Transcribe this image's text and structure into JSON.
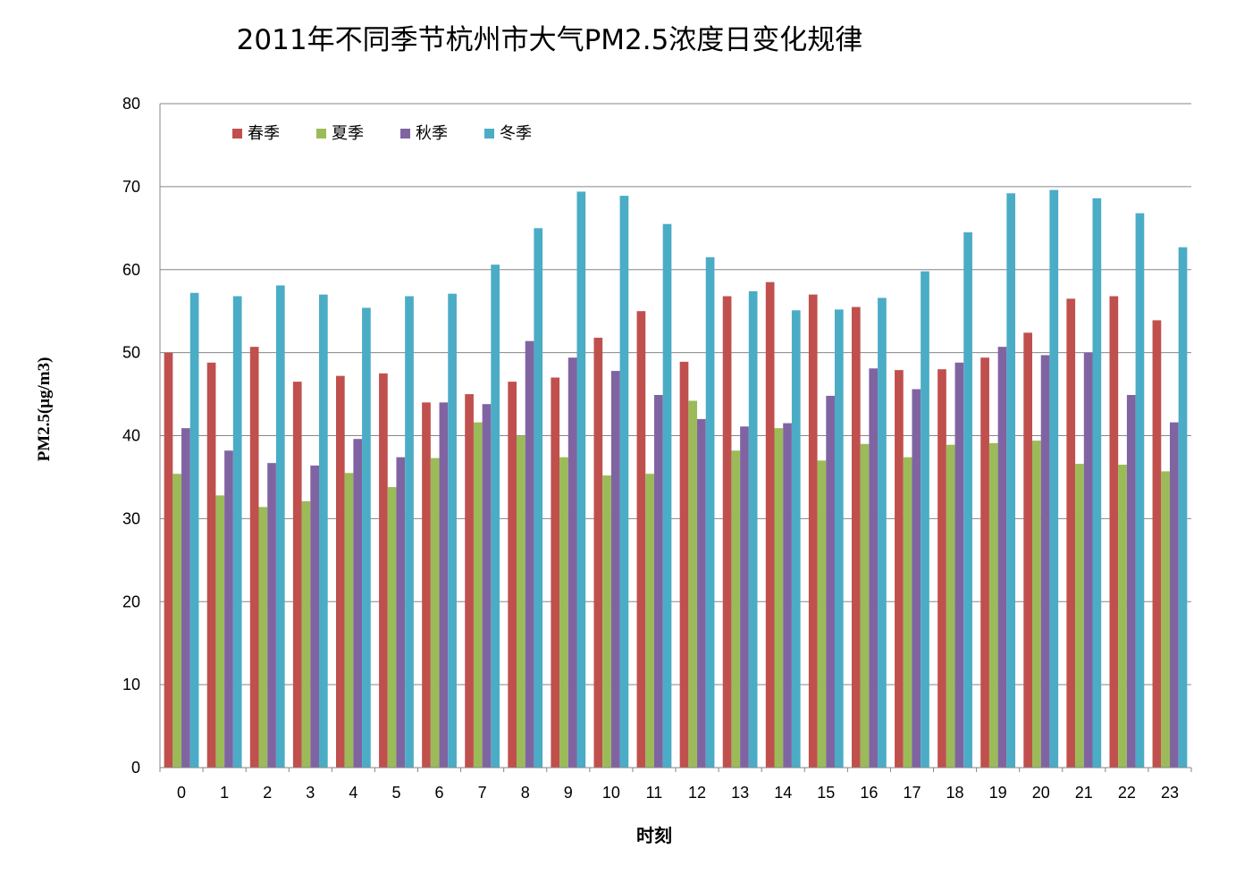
{
  "chart_data": {
    "type": "bar",
    "title": "2011年不同季节杭州市大气PM2.5浓度日变化规律",
    "xlabel": "时刻",
    "ylabel": "PM2.5(μg/m3)",
    "ylim": [
      0,
      80
    ],
    "yticks": [
      0,
      10,
      20,
      30,
      40,
      50,
      60,
      70,
      80
    ],
    "grid": true,
    "legend_position": "top-left inside plot",
    "categories": [
      "0",
      "1",
      "2",
      "3",
      "4",
      "5",
      "6",
      "7",
      "8",
      "9",
      "10",
      "11",
      "12",
      "13",
      "14",
      "15",
      "16",
      "17",
      "18",
      "19",
      "20",
      "21",
      "22",
      "23"
    ],
    "series": [
      {
        "name": "春季",
        "color": "#c0504d",
        "values": [
          50.0,
          48.8,
          50.7,
          46.5,
          47.2,
          47.5,
          44.0,
          45.0,
          46.5,
          47.0,
          51.8,
          55.0,
          48.9,
          56.8,
          58.5,
          57.0,
          55.5,
          47.9,
          48.0,
          49.4,
          52.4,
          56.5,
          56.8,
          53.9
        ]
      },
      {
        "name": "夏季",
        "color": "#9bbb59",
        "values": [
          35.4,
          32.8,
          31.4,
          32.1,
          35.5,
          33.8,
          37.3,
          41.6,
          40.0,
          37.4,
          35.2,
          35.4,
          44.2,
          38.2,
          40.9,
          37.0,
          39.0,
          37.4,
          38.9,
          39.1,
          39.4,
          36.6,
          36.5,
          35.7
        ]
      },
      {
        "name": "秋季",
        "color": "#8064a2",
        "values": [
          40.9,
          38.2,
          36.7,
          36.4,
          39.6,
          37.4,
          44.0,
          43.8,
          51.4,
          49.4,
          47.8,
          44.9,
          42.0,
          41.1,
          41.5,
          44.8,
          48.1,
          45.6,
          48.8,
          50.7,
          49.7,
          50.0,
          44.9,
          41.6
        ]
      },
      {
        "name": "冬季",
        "color": "#4bacc6",
        "values": [
          57.2,
          56.8,
          58.1,
          57.0,
          55.4,
          56.8,
          57.1,
          60.6,
          65.0,
          69.4,
          68.9,
          65.5,
          61.5,
          57.4,
          55.1,
          55.2,
          56.6,
          59.8,
          64.5,
          69.2,
          69.6,
          68.6,
          66.8,
          62.7
        ]
      }
    ]
  }
}
